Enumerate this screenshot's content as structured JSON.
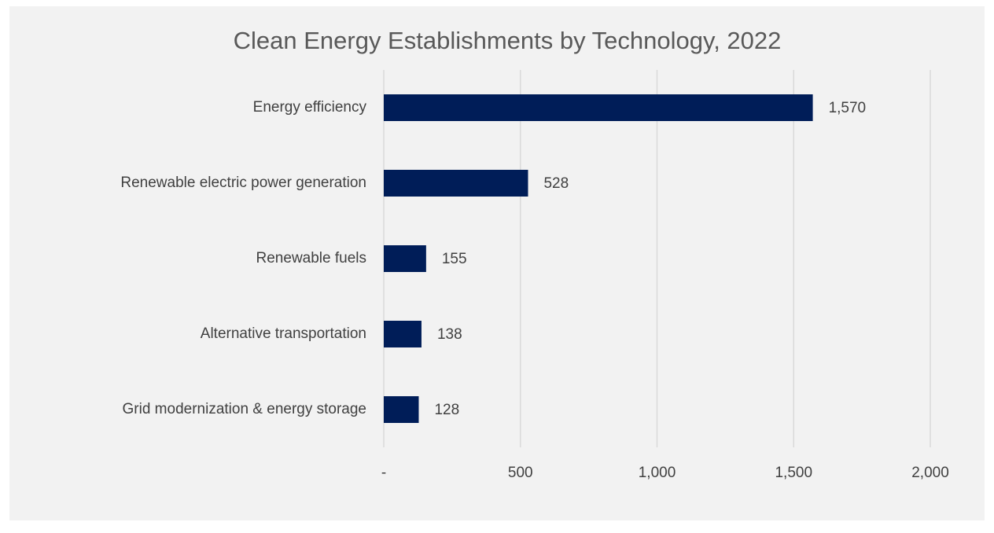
{
  "chart_data": {
    "type": "bar",
    "orientation": "horizontal",
    "title": "Clean Energy Establishments by Technology, 2022",
    "categories": [
      "Energy efficiency",
      "Renewable electric power generation",
      "Renewable fuels",
      "Alternative transportation",
      "Grid modernization & energy storage"
    ],
    "values": [
      1570,
      528,
      155,
      138,
      128
    ],
    "value_labels": [
      "1,570",
      "528",
      "155",
      "138",
      "128"
    ],
    "color": "#001d58",
    "xlim": [
      0,
      2000
    ],
    "xticks": [
      {
        "value": 0,
        "label": "-"
      },
      500,
      {
        "value": 1000,
        "label": "1,000"
      },
      {
        "value": 1500,
        "label": "1,500"
      },
      {
        "value": 2000,
        "label": "2,000"
      }
    ],
    "grid": true
  }
}
